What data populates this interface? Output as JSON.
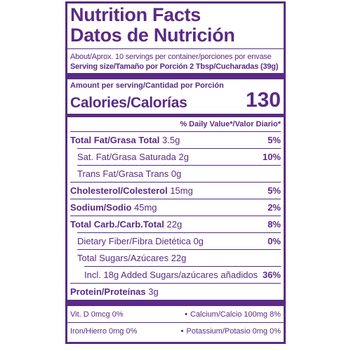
{
  "title_en": "Nutrition Facts",
  "title_es": "Datos de Nutrición",
  "servings": "About/Aprox. 10 servings per container/porciones por envase",
  "serving_size": "Serving size/Tamaño por Porción 2 Tbsp/Cucharadas (39g)",
  "amount_per_serving": "Amount per serving/Cantidad por Porción",
  "calories_label": "Calories/Calorías",
  "calories_value": "130",
  "daily_value_header": "% Daily Value*/Valor Diario*",
  "nutrients": [
    {
      "label": "Total Fat/Grasa Total",
      "amount": "3.5g",
      "pct": "5%"
    },
    {
      "label": "Sat. Fat/Grasa Saturada",
      "amount": "2g",
      "pct": "10%"
    },
    {
      "label": "Trans Fat/Grasa Trans",
      "amount": "0g",
      "pct": ""
    },
    {
      "label": "Cholesterol/Colesterol",
      "amount": "15mg",
      "pct": "5%"
    },
    {
      "label": "Sodium/Sodio",
      "amount": "45mg",
      "pct": "2%"
    },
    {
      "label": "Total Carb./Carb.Total",
      "amount": "22g",
      "pct": "8%"
    },
    {
      "label": "Dietary Fiber/Fibra Dietética",
      "amount": "0g",
      "pct": "0%"
    },
    {
      "label": "Total Sugars/Azúcares",
      "amount": "22g",
      "pct": ""
    },
    {
      "label": "Incl. 18g Added Sugars/azúcares añadidos",
      "amount": "",
      "pct": "36%"
    },
    {
      "label": "Protein/Proteínas",
      "amount": "3g",
      "pct": ""
    }
  ],
  "vitamins": {
    "vit_d": "Vit. D 0mcg 0%",
    "calcium": "Calcium/Calcio 100mg 8%",
    "iron": "Iron/Hierro 0mg 0%",
    "potassium": "Potassium/Potasio 0mg 0%",
    "bullet": "•"
  },
  "colors": {
    "ink": "#5b2a86",
    "background": "#ffffff"
  }
}
